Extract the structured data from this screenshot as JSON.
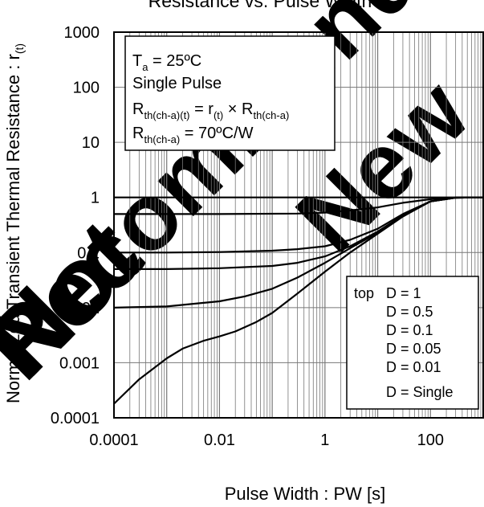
{
  "chart_data": {
    "type": "line",
    "title": "Resistance vs. Pulse Width",
    "xlabel": "Pulse Width : PW [s]",
    "ylabel": "Normalized Transient Thermal Resistance : r",
    "ylabel_sub": "(t)",
    "xscale": "log",
    "yscale": "log",
    "xlim": [
      0.0001,
      1000
    ],
    "ylim": [
      0.0001,
      1000
    ],
    "grid": true,
    "x_tick_labels": [
      "0.0001",
      "0.01",
      "1",
      "100"
    ],
    "x_tick_values": [
      0.0001,
      0.01,
      1,
      100
    ],
    "y_tick_labels": [
      "1000",
      "100",
      "10",
      "1",
      "0.1",
      "0.01",
      "0.001",
      "0.0001"
    ],
    "y_tick_values": [
      1000,
      100,
      10,
      1,
      0.1,
      0.01,
      0.001,
      0.0001
    ],
    "conditions": {
      "line1": {
        "main": "T",
        "sub": "a",
        "rest": " = 25ºC"
      },
      "line2": "Single Pulse",
      "line3": {
        "a": "R",
        "a_sub": "th(ch-a)(t)",
        "b": " = r",
        "b_sub": "(t)",
        "c": " × R",
        "c_sub": "th(ch-a)"
      },
      "line4": {
        "a": "R",
        "a_sub": "th(ch-a)",
        "b": " = 70ºC/W"
      }
    },
    "legend": {
      "placement": "bottom-right",
      "header": "top",
      "entries": [
        "D = 1",
        "D = 0.5",
        "D = 0.1",
        "D = 0.05",
        "D = 0.01",
        "D = Single"
      ]
    },
    "series": [
      {
        "name": "D = 1",
        "x": [
          0.0001,
          1000
        ],
        "y": [
          1,
          1
        ]
      },
      {
        "name": "D = 0.5",
        "x": [
          0.0001,
          0.01,
          0.3,
          1,
          3,
          10,
          30,
          100,
          300,
          1000
        ],
        "y": [
          0.5,
          0.5,
          0.51,
          0.53,
          0.58,
          0.66,
          0.8,
          0.93,
          0.99,
          1
        ]
      },
      {
        "name": "D = 0.1",
        "x": [
          0.0001,
          0.001,
          0.01,
          0.1,
          0.3,
          1,
          3,
          10,
          30,
          100,
          300,
          1000
        ],
        "y": [
          0.1,
          0.1,
          0.102,
          0.108,
          0.115,
          0.13,
          0.17,
          0.27,
          0.5,
          0.85,
          0.99,
          1
        ]
      },
      {
        "name": "D = 0.05",
        "x": [
          0.0001,
          0.001,
          0.01,
          0.1,
          0.3,
          1,
          3,
          10,
          30,
          100,
          300,
          1000
        ],
        "y": [
          0.05,
          0.05,
          0.052,
          0.057,
          0.065,
          0.085,
          0.13,
          0.24,
          0.47,
          0.85,
          0.99,
          1
        ]
      },
      {
        "name": "D = 0.01",
        "x": [
          0.0001,
          0.001,
          0.01,
          0.03,
          0.1,
          0.3,
          1,
          3,
          10,
          30,
          100,
          300,
          1000
        ],
        "y": [
          0.01,
          0.0105,
          0.013,
          0.016,
          0.022,
          0.035,
          0.065,
          0.12,
          0.23,
          0.46,
          0.85,
          0.99,
          1
        ]
      },
      {
        "name": "D = Single",
        "x": [
          0.0001,
          0.0003,
          0.001,
          0.002,
          0.005,
          0.01,
          0.02,
          0.05,
          0.1,
          0.3,
          1,
          3,
          10,
          30,
          100,
          300,
          1000
        ],
        "y": [
          0.00018,
          0.0005,
          0.0012,
          0.0018,
          0.0025,
          0.003,
          0.0037,
          0.0055,
          0.008,
          0.018,
          0.045,
          0.1,
          0.22,
          0.45,
          0.85,
          0.99,
          1
        ]
      }
    ]
  },
  "watermark": {
    "words": [
      "Not",
      "Recommended",
      "for",
      "New"
    ],
    "color": "#000000"
  }
}
